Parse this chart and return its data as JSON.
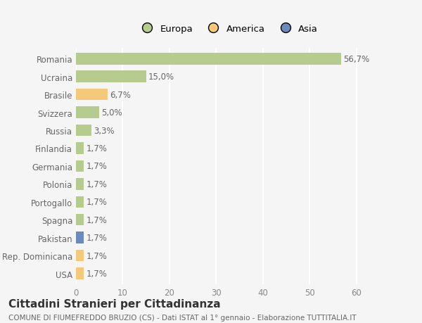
{
  "categories": [
    "Romania",
    "Ucraina",
    "Brasile",
    "Svizzera",
    "Russia",
    "Finlandia",
    "Germania",
    "Polonia",
    "Portogallo",
    "Spagna",
    "Pakistan",
    "Rep. Dominicana",
    "USA"
  ],
  "values": [
    56.7,
    15.0,
    6.7,
    5.0,
    3.3,
    1.7,
    1.7,
    1.7,
    1.7,
    1.7,
    1.7,
    1.7,
    1.7
  ],
  "labels": [
    "56,7%",
    "15,0%",
    "6,7%",
    "5,0%",
    "3,3%",
    "1,7%",
    "1,7%",
    "1,7%",
    "1,7%",
    "1,7%",
    "1,7%",
    "1,7%",
    "1,7%"
  ],
  "colors": [
    "#b5cc8e",
    "#b5cc8e",
    "#f5c97a",
    "#b5cc8e",
    "#b5cc8e",
    "#b5cc8e",
    "#b5cc8e",
    "#b5cc8e",
    "#b5cc8e",
    "#b5cc8e",
    "#6b8bbf",
    "#f5c97a",
    "#f5c97a"
  ],
  "legend_labels": [
    "Europa",
    "America",
    "Asia"
  ],
  "legend_colors": [
    "#b5cc8e",
    "#f5c97a",
    "#6b8bbf"
  ],
  "title": "Cittadini Stranieri per Cittadinanza",
  "subtitle": "COMUNE DI FIUMEFREDDO BRUZIO (CS) - Dati ISTAT al 1° gennaio - Elaborazione TUTTITALIA.IT",
  "xlim": [
    0,
    65
  ],
  "xticks": [
    0,
    10,
    20,
    30,
    40,
    50,
    60
  ],
  "bg_color": "#f5f5f5",
  "bar_height": 0.65,
  "label_fontsize": 8.5,
  "tick_fontsize": 8.5,
  "title_fontsize": 11,
  "subtitle_fontsize": 7.5
}
